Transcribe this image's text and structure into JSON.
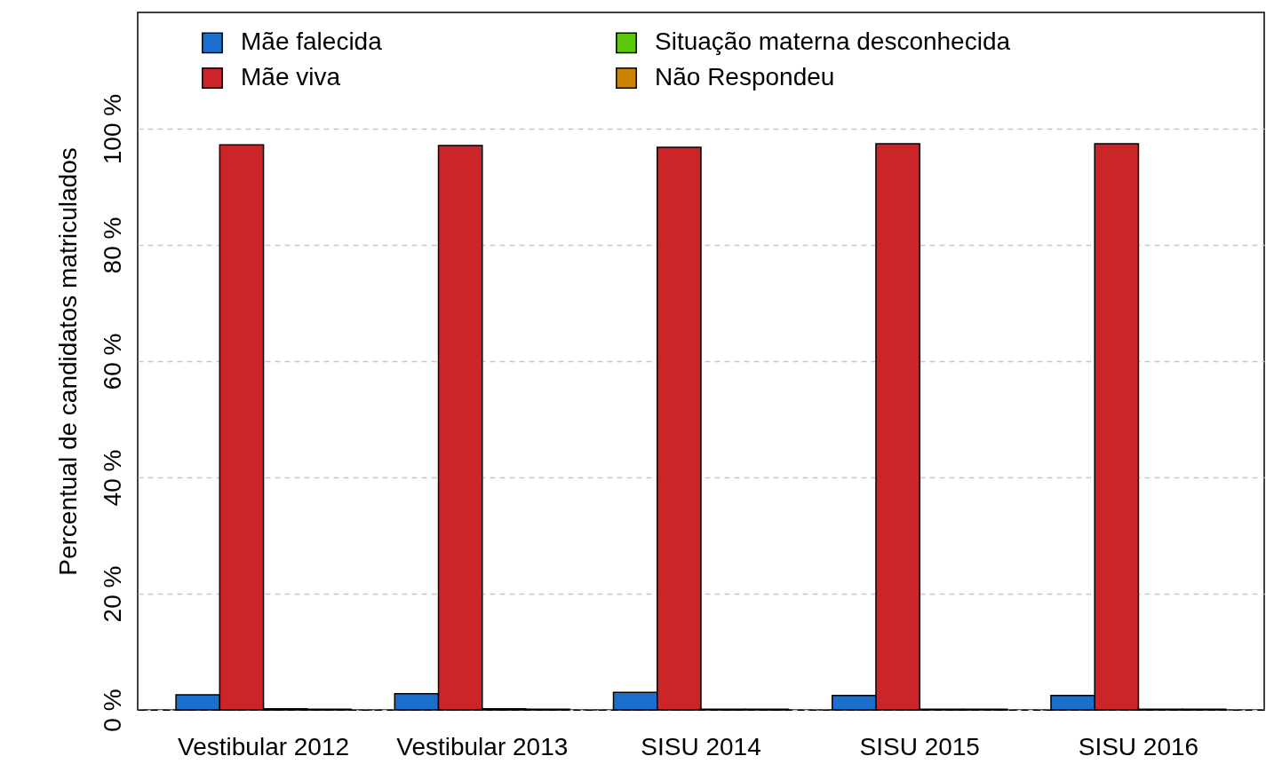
{
  "chart_data": {
    "type": "bar",
    "ylabel": "Percentual de candidatos matriculados",
    "categories": [
      "Vestibular 2012",
      "Vestibular 2013",
      "SISU 2014",
      "SISU 2015",
      "SISU 2016"
    ],
    "series": [
      {
        "name": "Mãe falecida",
        "color": "#1a6fcc",
        "values": [
          2.6,
          2.8,
          3.0,
          2.5,
          2.5
        ]
      },
      {
        "name": "Mãe viva",
        "color": "#cc2529",
        "values": [
          97.2,
          97.1,
          96.8,
          97.4,
          97.4
        ]
      },
      {
        "name": "Situação materna desconhecida",
        "color": "#5cc80c",
        "values": [
          0.2,
          0.2,
          0.1,
          0.1,
          0.1
        ]
      },
      {
        "name": "Não Respondeu",
        "color": "#cc8400",
        "values": [
          0.1,
          0.1,
          0.1,
          0.1,
          0.1
        ]
      }
    ],
    "ylim": [
      0,
      120
    ],
    "yticks": [
      {
        "value": 0,
        "label": "0 %"
      },
      {
        "value": 20,
        "label": "20 %"
      },
      {
        "value": 40,
        "label": "40 %"
      },
      {
        "value": 60,
        "label": "60 %"
      },
      {
        "value": 80,
        "label": "80 %"
      },
      {
        "value": 100,
        "label": "100 %"
      }
    ],
    "grid": "y",
    "legend": "top left"
  }
}
